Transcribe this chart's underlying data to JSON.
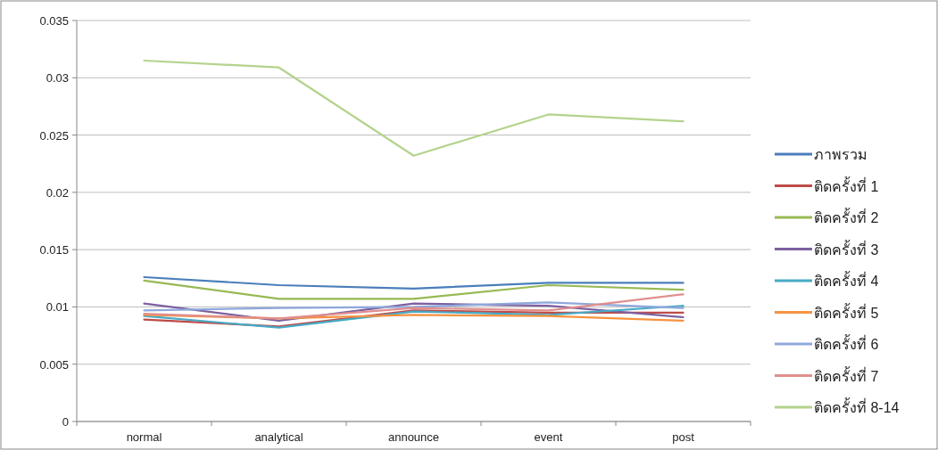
{
  "chart_data": {
    "type": "line",
    "categories": [
      "normal",
      "analytical",
      "announce",
      "event",
      "post"
    ],
    "ylim": [
      0,
      0.035
    ],
    "yticks": [
      0,
      0.005,
      0.01,
      0.015,
      0.02,
      0.025,
      0.03,
      0.035
    ],
    "grid": "y",
    "legend": "right",
    "marker": "none",
    "line_style": "solid",
    "series": [
      {
        "name": "ภาพรวม",
        "color": "#4a7ebb",
        "values": [
          0.0126,
          0.0119,
          0.0116,
          0.0121,
          0.0121
        ]
      },
      {
        "name": "ติดครั้งที่ 1",
        "color": "#be4b48",
        "values": [
          0.0089,
          0.0083,
          0.0097,
          0.0095,
          0.0095
        ]
      },
      {
        "name": "ติดครั้งที่ 2",
        "color": "#98b954",
        "values": [
          0.0123,
          0.0107,
          0.0107,
          0.0119,
          0.0115
        ]
      },
      {
        "name": "ติดครั้งที่ 3",
        "color": "#7d60a0",
        "values": [
          0.0103,
          0.0088,
          0.0103,
          0.0101,
          0.0091
        ]
      },
      {
        "name": "ติดครั้งที่ 4",
        "color": "#46aac5",
        "values": [
          0.0092,
          0.0082,
          0.0096,
          0.0093,
          0.0101
        ]
      },
      {
        "name": "ติดครั้งที่ 5",
        "color": "#f69240",
        "values": [
          0.0093,
          0.009,
          0.0093,
          0.0092,
          0.0088
        ]
      },
      {
        "name": "ติดครั้งที่ 6",
        "color": "#8fa8dc",
        "values": [
          0.0097,
          0.0099,
          0.01,
          0.0104,
          0.0099
        ]
      },
      {
        "name": "ติดครั้งที่ 7",
        "color": "#e08f8d",
        "values": [
          0.0094,
          0.009,
          0.0099,
          0.0097,
          0.0111
        ]
      },
      {
        "name": "ติดครั้งที่ 8-14",
        "color": "#b3d38c",
        "values": [
          0.0315,
          0.0309,
          0.0232,
          0.0268,
          0.0262
        ]
      }
    ]
  }
}
